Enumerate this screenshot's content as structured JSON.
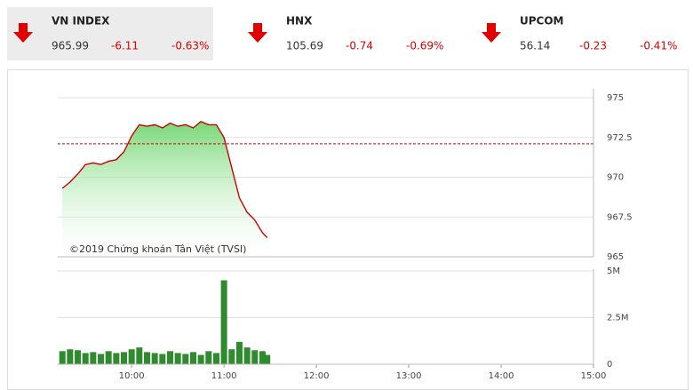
{
  "header": {
    "indices": [
      {
        "name": "VN INDEX",
        "value": "965.99",
        "change": "-6.11",
        "pct": "-0.63%"
      },
      {
        "name": "HNX",
        "value": "105.69",
        "change": "-0.74",
        "pct": "-0.69%"
      },
      {
        "name": "UPCOM",
        "value": "56.14",
        "change": "-0.23",
        "pct": "-0.41%"
      }
    ]
  },
  "chart_data": [
    {
      "type": "area",
      "annotation": "©2019 Chứng khoán Tân Việt (TVSI)",
      "x": [
        9.25,
        9.3333,
        9.4167,
        9.5,
        9.5833,
        9.6667,
        9.75,
        9.8333,
        9.9167,
        10,
        10.0833,
        10.1667,
        10.25,
        10.3333,
        10.4167,
        10.5,
        10.5833,
        10.6667,
        10.75,
        10.8333,
        10.9167,
        11,
        11.0833,
        11.1667,
        11.25,
        11.3333,
        11.4167,
        11.4667
      ],
      "values": [
        969.3,
        969.7,
        970.2,
        970.8,
        970.9,
        970.8,
        971.0,
        971.1,
        971.6,
        972.6,
        973.3,
        973.2,
        973.3,
        973.1,
        973.4,
        973.2,
        973.3,
        973.1,
        973.5,
        973.3,
        973.3,
        972.5,
        970.6,
        968.7,
        967.8,
        967.3,
        966.5,
        966.2
      ],
      "color": "#cc0000",
      "fill_color": "#6fd66f",
      "reference": 972.1,
      "reference_color": "#cc0000",
      "xlim": [
        9.2,
        15
      ],
      "ylim": [
        965,
        975
      ],
      "yticks": [
        975,
        972.5,
        970,
        967.5,
        965
      ],
      "grid": true
    },
    {
      "type": "bar",
      "x": [
        9.25,
        9.3333,
        9.4167,
        9.5,
        9.5833,
        9.6667,
        9.75,
        9.8333,
        9.9167,
        10,
        10.0833,
        10.1667,
        10.25,
        10.3333,
        10.4167,
        10.5,
        10.5833,
        10.6667,
        10.75,
        10.8333,
        10.9167,
        11,
        11.0833,
        11.1667,
        11.25,
        11.3333,
        11.4167,
        11.4667
      ],
      "values": [
        700000,
        800000,
        750000,
        600000,
        650000,
        550000,
        700000,
        600000,
        650000,
        800000,
        900000,
        650000,
        600000,
        550000,
        700000,
        600000,
        550000,
        650000,
        500000,
        700000,
        600000,
        4500000,
        800000,
        1200000,
        900000,
        750000,
        700000,
        500000
      ],
      "color": "#2e8b2e",
      "xlim": [
        9.2,
        15
      ],
      "ylim": [
        0,
        5000000
      ],
      "yticks": [
        0,
        {
          "value": 2500000,
          "label": "2.5M"
        },
        {
          "value": 5000000,
          "label": "5M"
        }
      ],
      "xticks": [
        {
          "value": 10,
          "label": "10:00"
        },
        {
          "value": 11,
          "label": "11:00"
        },
        {
          "value": 12,
          "label": "12:00"
        },
        {
          "value": 13,
          "label": "13:00"
        },
        {
          "value": 14,
          "label": "14:00"
        },
        {
          "value": 15,
          "label": "15:00"
        }
      ],
      "grid": true
    }
  ]
}
